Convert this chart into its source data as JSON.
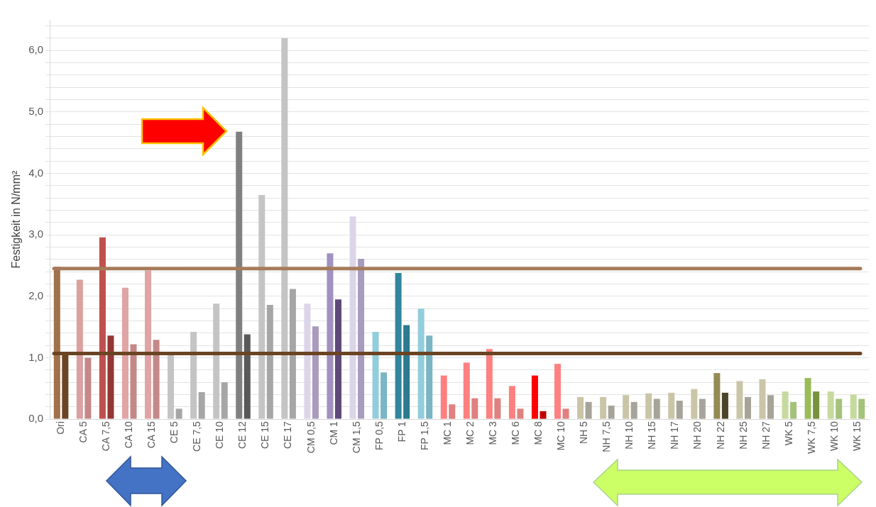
{
  "chart_data": {
    "type": "bar",
    "ylabel": "Festigkeit in N/mm²",
    "categories": [
      "Ori",
      "CA 5",
      "CA 7,5",
      "CA 10",
      "CA 15",
      "CE 5",
      "CE 7,5",
      "CE 10",
      "CE 12",
      "CE 15",
      "CE 17",
      "CM 0,5",
      "CM 1",
      "CM 1,5",
      "FP 0,5",
      "FP 1",
      "FP 1,5",
      "MC 1",
      "MC 2",
      "MC 3",
      "MC 6",
      "MC 8",
      "MC 10",
      "NH 5",
      "NH 7,5",
      "NH 10",
      "NH 15",
      "NH 17",
      "NH 20",
      "NH 22",
      "NH 25",
      "NH 27",
      "WK 5",
      "WK 7,5",
      "WK 10",
      "WK 15"
    ],
    "series": [
      {
        "values": [
          2.48,
          2.27,
          2.96,
          2.14,
          2.42,
          1.06,
          1.42,
          1.88,
          4.68,
          3.65,
          6.2,
          1.88,
          2.7,
          3.3,
          1.42,
          2.38,
          1.8,
          0.71,
          0.92,
          1.14,
          0.54,
          0.71,
          0.9,
          0.36,
          0.36,
          0.39,
          0.42,
          0.43,
          0.49,
          0.75,
          0.62,
          0.65,
          0.45,
          0.67,
          0.45,
          0.4
        ],
        "colors": [
          "#a0714a",
          "#dba0a0",
          "#c0504d",
          "#e0a4a4",
          "#e0a4a4",
          "#c4c4c4",
          "#c4c4c4",
          "#c4c4c4",
          "#808080",
          "#c4c4c4",
          "#c4c4c4",
          "#dcd4e8",
          "#a190c0",
          "#dcd4e8",
          "#92cddc",
          "#31859c",
          "#92cddc",
          "#ff8080",
          "#ff8080",
          "#ff8080",
          "#ff8080",
          "#ff0000",
          "#ff8080",
          "#cbc5a8",
          "#cbc5a8",
          "#cbc5a8",
          "#cbc5a8",
          "#cbc5a8",
          "#cbc5a8",
          "#948a54",
          "#cbc5a8",
          "#cbc5a8",
          "#c6da9e",
          "#9bbb59",
          "#c6da9e",
          "#c6da9e"
        ]
      },
      {
        "values": [
          1.07,
          1.0,
          1.36,
          1.22,
          1.29,
          0.17,
          0.44,
          0.6,
          1.38,
          1.86,
          2.12,
          1.51,
          1.95,
          2.61,
          0.76,
          1.53,
          1.36,
          0.24,
          0.34,
          0.34,
          0.17,
          0.13,
          0.17,
          0.28,
          0.22,
          0.28,
          0.33,
          0.3,
          0.33,
          0.43,
          0.36,
          0.39,
          0.28,
          0.45,
          0.33,
          0.33
        ],
        "colors": [
          "#6b4423",
          "#c48888",
          "#943634",
          "#c48888",
          "#c48888",
          "#a6a6a6",
          "#a6a6a6",
          "#a6a6a6",
          "#595959",
          "#a6a6a6",
          "#a6a6a6",
          "#a99bbd",
          "#5f497a",
          "#a99bbd",
          "#79b5c4",
          "#2b7a8f",
          "#79b5c4",
          "#e08080",
          "#e08080",
          "#e08080",
          "#e08080",
          "#c00000",
          "#e08080",
          "#a6a49a",
          "#a6a49a",
          "#a6a49a",
          "#a6a49a",
          "#a6a49a",
          "#a6a49a",
          "#4a4528",
          "#a6a49a",
          "#a6a49a",
          "#a4c27a",
          "#76923c",
          "#a4c27a",
          "#a4c27a"
        ]
      }
    ],
    "ylim": [
      0,
      6.5
    ],
    "yticks": [
      {
        "value": 0,
        "label": "0,0"
      },
      {
        "value": 0.2,
        "label": null
      },
      {
        "value": 0.4,
        "label": null
      },
      {
        "value": 0.6,
        "label": null
      },
      {
        "value": 0.8,
        "label": null
      },
      {
        "value": 1,
        "label": "1,0"
      },
      {
        "value": 1.2,
        "label": null
      },
      {
        "value": 1.4,
        "label": null
      },
      {
        "value": 1.6,
        "label": null
      },
      {
        "value": 1.8,
        "label": null
      },
      {
        "value": 2,
        "label": "2,0"
      },
      {
        "value": 2.2,
        "label": null
      },
      {
        "value": 2.4,
        "label": null
      },
      {
        "value": 2.6,
        "label": null
      },
      {
        "value": 2.8,
        "label": null
      },
      {
        "value": 3,
        "label": "3,0"
      },
      {
        "value": 3.2,
        "label": null
      },
      {
        "value": 3.4,
        "label": null
      },
      {
        "value": 3.6,
        "label": null
      },
      {
        "value": 3.8,
        "label": null
      },
      {
        "value": 4,
        "label": "4,0"
      },
      {
        "value": 4.2,
        "label": null
      },
      {
        "value": 4.4,
        "label": null
      },
      {
        "value": 4.6,
        "label": null
      },
      {
        "value": 4.8,
        "label": null
      },
      {
        "value": 5,
        "label": "5,0"
      },
      {
        "value": 5.2,
        "label": null
      },
      {
        "value": 5.4,
        "label": null
      },
      {
        "value": 5.6,
        "label": null
      },
      {
        "value": 5.8,
        "label": null
      },
      {
        "value": 6,
        "label": "6,0"
      },
      {
        "value": 6.2,
        "label": null
      },
      {
        "value": 6.4,
        "label": null
      }
    ],
    "ref_lines": [
      {
        "axis": "y",
        "value": 2.45,
        "color": "#a67b5b"
      },
      {
        "axis": "y",
        "value": 1.07,
        "color": "#6b4423"
      }
    ],
    "grid": "y",
    "legend": false
  }
}
